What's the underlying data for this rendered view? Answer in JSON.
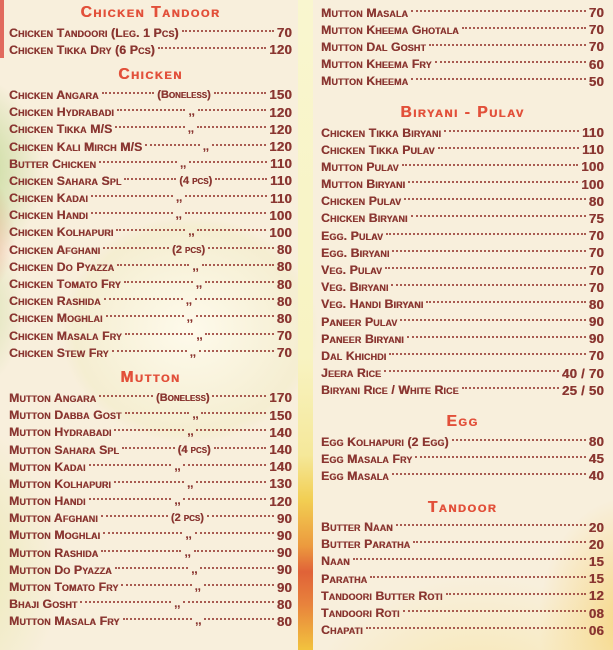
{
  "colors": {
    "heading": "#e2503a",
    "item": "#8a3631",
    "background": "#f8efdc"
  },
  "menu": {
    "columns": [
      {
        "name": "left",
        "sections": [
          {
            "title": "Chicken Tandoor",
            "items": [
              {
                "name": "Chicken Tandoori (Leg. 1 Pcs)",
                "mid": "",
                "price": "70"
              },
              {
                "name": "Chicken Tikka Dry (6 Pcs)",
                "mid": "",
                "price": "120"
              }
            ]
          },
          {
            "title": "Chicken",
            "items": [
              {
                "name": "Chicken Angara",
                "mid": "(Boneless)",
                "price": "150"
              },
              {
                "name": "Chicken Hydrabadi",
                "mid": ",,",
                "price": "120"
              },
              {
                "name": "Chicken Tikka M/S",
                "mid": ",,",
                "price": "120"
              },
              {
                "name": "Chicken Kali Mirch M/S",
                "mid": ",,",
                "price": "120"
              },
              {
                "name": "Butter Chicken",
                "mid": ",,",
                "price": "110"
              },
              {
                "name": "Chicken Sahara Spl",
                "mid": "(4 pcs)",
                "price": "110"
              },
              {
                "name": "Chicken Kadai",
                "mid": ",,",
                "price": "110"
              },
              {
                "name": "Chicken Handi",
                "mid": ",,",
                "price": "100"
              },
              {
                "name": "Chicken Kolhapuri",
                "mid": ",,",
                "price": "100"
              },
              {
                "name": "Chicken Afghani",
                "mid": "(2 pcs)",
                "price": "80"
              },
              {
                "name": "Chicken Do Pyazza",
                "mid": ",,",
                "price": "80"
              },
              {
                "name": "Chicken Tomato Fry",
                "mid": ",,",
                "price": "80"
              },
              {
                "name": "Chicken Rashida",
                "mid": ",,",
                "price": "80"
              },
              {
                "name": "Chicken Moghlai",
                "mid": ",,",
                "price": "80"
              },
              {
                "name": "Chicken Masala Fry",
                "mid": ",,",
                "price": "70"
              },
              {
                "name": "Chicken Stew Fry",
                "mid": ",,",
                "price": "70"
              }
            ]
          },
          {
            "title": "Mutton",
            "items": [
              {
                "name": "Mutton Angara",
                "mid": "(Boneless)",
                "price": "170"
              },
              {
                "name": "Mutton Dabba Gost",
                "mid": ",,",
                "price": "150"
              },
              {
                "name": "Mutton Hydrabadi",
                "mid": ",,",
                "price": "140"
              },
              {
                "name": "Mutton Sahara Spl",
                "mid": "(4 pcs)",
                "price": "140"
              },
              {
                "name": "Mutton Kadai",
                "mid": ",,",
                "price": "140"
              },
              {
                "name": "Mutton Kolhapuri",
                "mid": ",,",
                "price": "130"
              },
              {
                "name": "Mutton Handi",
                "mid": ",,",
                "price": "120"
              },
              {
                "name": "Mutton Afghani",
                "mid": "(2 pcs)",
                "price": "90"
              },
              {
                "name": "Mutton Moghlai",
                "mid": ",,",
                "price": "90"
              },
              {
                "name": "Mutton Rashida",
                "mid": ",,",
                "price": "90"
              },
              {
                "name": "Mutton Do Pyazza",
                "mid": ",,",
                "price": "90"
              },
              {
                "name": "Mutton Tomato Fry",
                "mid": ",,",
                "price": "90"
              },
              {
                "name": "Bhaji Gosht",
                "mid": ",,",
                "price": "80"
              },
              {
                "name": "Mutton Masala Fry",
                "mid": ",,",
                "price": "80"
              }
            ]
          }
        ]
      },
      {
        "name": "right",
        "sections": [
          {
            "title": "",
            "items": [
              {
                "name": "Mutton Masala",
                "mid": "",
                "price": "70"
              },
              {
                "name": "Mutton Kheema Ghotala",
                "mid": "",
                "price": "70"
              },
              {
                "name": "Mutton Dal Gosht",
                "mid": "",
                "price": "70"
              },
              {
                "name": "Mutton Kheema Fry",
                "mid": "",
                "price": "60"
              },
              {
                "name": "Mutton Kheema",
                "mid": "",
                "price": "50"
              }
            ]
          },
          {
            "title": "Biryani - Pulav",
            "items": [
              {
                "name": "Chicken Tikka Biryani",
                "mid": "",
                "price": "110"
              },
              {
                "name": "Chicken Tikka Pulav",
                "mid": "",
                "price": "110"
              },
              {
                "name": "Mutton Pulav",
                "mid": "",
                "price": "100"
              },
              {
                "name": "Mutton Biryani",
                "mid": "",
                "price": "100"
              },
              {
                "name": "Chicken Pulav",
                "mid": "",
                "price": "80"
              },
              {
                "name": "Chicken Biryani",
                "mid": "",
                "price": "75"
              },
              {
                "name": "Egg. Pulav",
                "mid": "",
                "price": "70"
              },
              {
                "name": "Egg. Biryani",
                "mid": "",
                "price": "70"
              },
              {
                "name": "Veg. Pulav",
                "mid": "",
                "price": "70"
              },
              {
                "name": "Veg. Biryani",
                "mid": "",
                "price": "70"
              },
              {
                "name": "Veg. Handi Biryani",
                "mid": "",
                "price": "80"
              },
              {
                "name": "Paneer Pulav",
                "mid": "",
                "price": "90"
              },
              {
                "name": "Paneer Biryani",
                "mid": "",
                "price": "90"
              },
              {
                "name": "Dal Khichdi",
                "mid": "",
                "price": "70"
              },
              {
                "name": "Jeera Rice",
                "mid": "",
                "price": "40 / 70"
              },
              {
                "name": "Biryani Rice / White Rice",
                "mid": "",
                "price": "25 / 50"
              }
            ]
          },
          {
            "title": "Egg",
            "items": [
              {
                "name": "Egg Kolhapuri (2 Egg)",
                "mid": "",
                "price": "80"
              },
              {
                "name": "Egg Masala Fry",
                "mid": "",
                "price": "45"
              },
              {
                "name": "Egg Masala",
                "mid": "",
                "price": "40"
              }
            ]
          },
          {
            "title": "Tandoor",
            "items": [
              {
                "name": "Butter Naan",
                "mid": "",
                "price": "20"
              },
              {
                "name": "Butter Paratha",
                "mid": "",
                "price": "20"
              },
              {
                "name": "Naan",
                "mid": "",
                "price": "15"
              },
              {
                "name": "Paratha",
                "mid": "",
                "price": "15"
              },
              {
                "name": "Tandoori Butter Roti",
                "mid": "",
                "price": "12"
              },
              {
                "name": "Tandoori Roti",
                "mid": "",
                "price": "08"
              },
              {
                "name": "Chapati",
                "mid": "",
                "price": "06"
              }
            ]
          }
        ]
      }
    ]
  }
}
